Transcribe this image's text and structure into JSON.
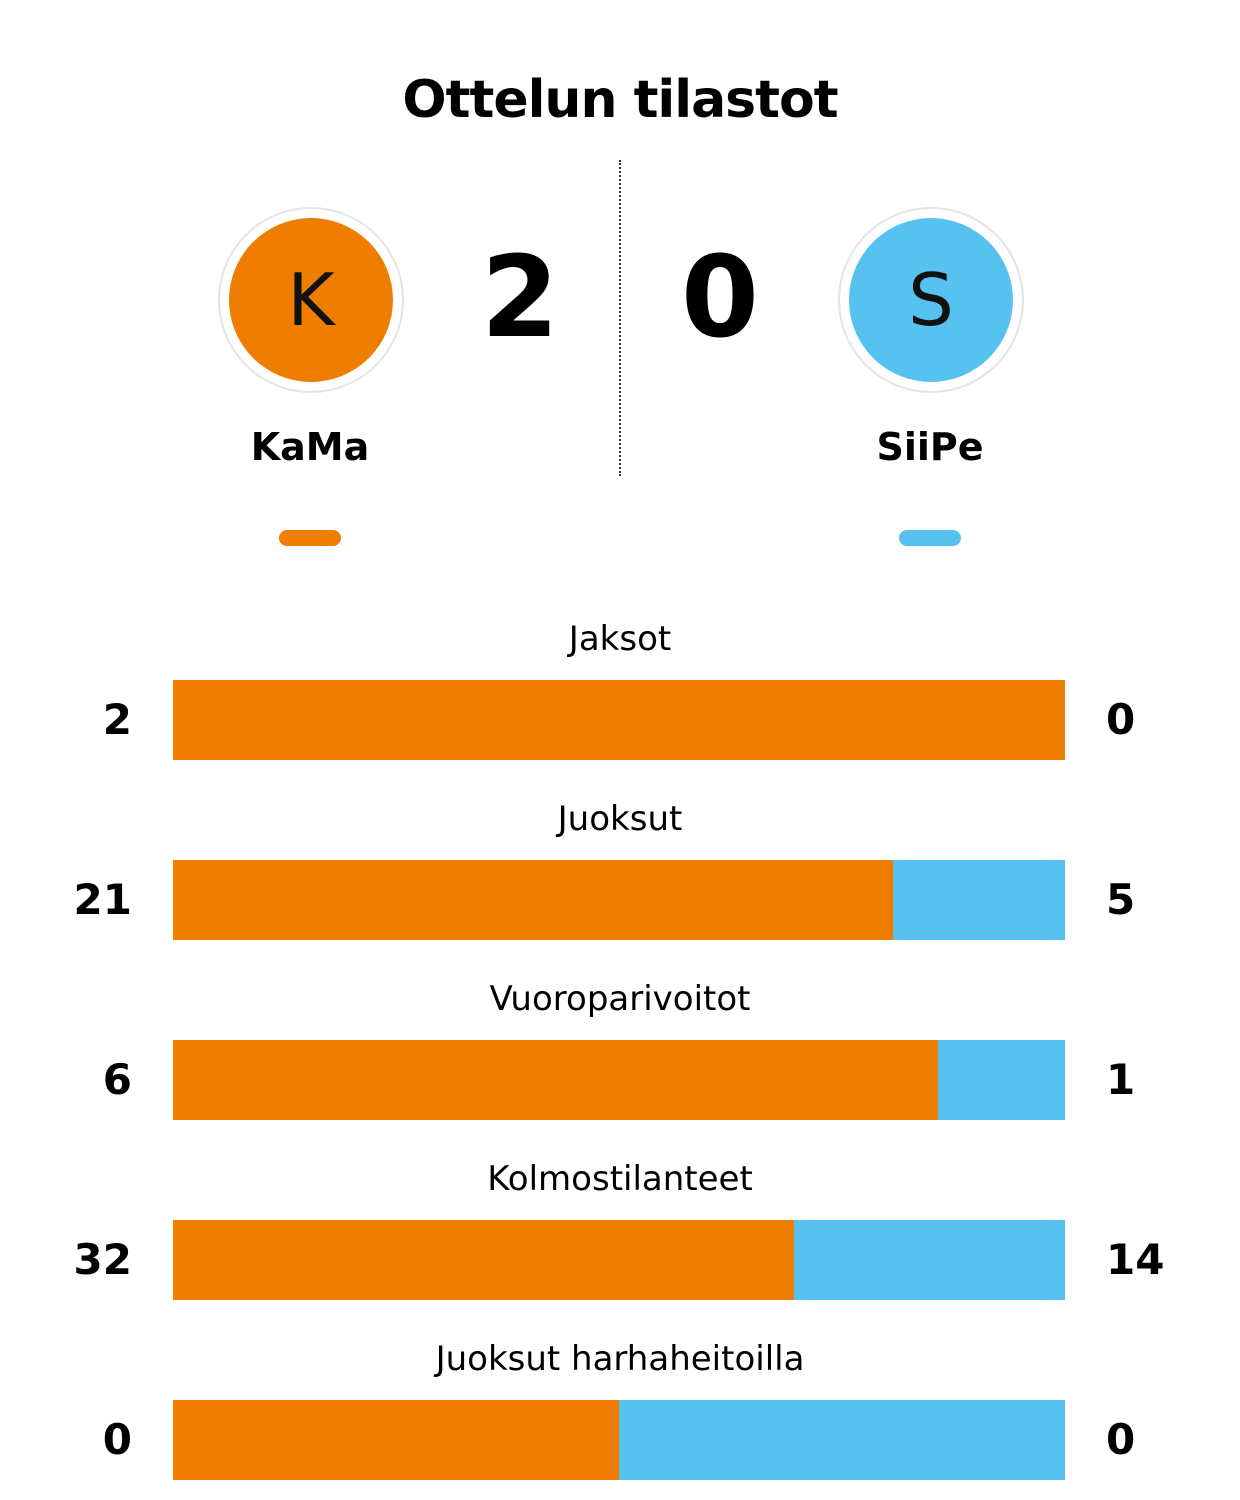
{
  "colors": {
    "home": "#ef7d00",
    "away": "#57c1ef"
  },
  "header": {
    "title": "Ottelun tilastot"
  },
  "home": {
    "initial": "K",
    "name": "KaMa",
    "score": "2"
  },
  "away": {
    "initial": "S",
    "name": "SiiPe",
    "score": "0"
  },
  "chart_data": {
    "type": "bar",
    "orientation": "horizontal",
    "stacked": true,
    "normalized": true,
    "categories": [
      "Jaksot",
      "Juoksut",
      "Vuoroparivoitot",
      "Kolmostilanteet",
      "Juoksut harhaheitoilla"
    ],
    "series": [
      {
        "name": "KaMa",
        "values": [
          2,
          21,
          6,
          32,
          0
        ]
      },
      {
        "name": "SiiPe",
        "values": [
          0,
          5,
          1,
          14,
          0
        ]
      }
    ]
  }
}
